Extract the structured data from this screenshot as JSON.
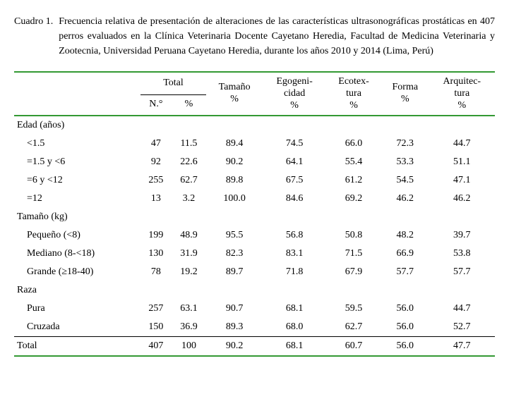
{
  "caption": {
    "label": "Cuadro 1.",
    "text": "Frecuencia relativa de presentación de alteraciones de las características ultrasonográficas prostáticas en 407 perros evaluados en la Clínica Veterinaria Docente Cayetano Heredia, Facultad de Medicina Veterinaria y Zootecnia, Universidad Peruana Cayetano Heredia, durante los años 2010 y 2014 (Lima, Perú)"
  },
  "headers": {
    "total": "Total",
    "n": "N.°",
    "pct": "%",
    "tamano": "Tamaño %",
    "egogenicidad": "Egogeni- cidad %",
    "ecotextura": "Ecotex- tura %",
    "forma": "Forma %",
    "arquitectura": "Arquitec- tura %"
  },
  "groups": {
    "edad": "Edad (años)",
    "tamano": "Tamaño (kg)",
    "raza": "Raza",
    "total": "Total"
  },
  "rows": {
    "edad1": {
      "label": "<1.5",
      "n": "47",
      "pct": "11.5",
      "tam": "89.4",
      "ego": "74.5",
      "eco": "66.0",
      "for": "72.3",
      "arq": "44.7"
    },
    "edad2": {
      "label": "=1.5 y <6",
      "n": "92",
      "pct": "22.6",
      "tam": "90.2",
      "ego": "64.1",
      "eco": "55.4",
      "for": "53.3",
      "arq": "51.1"
    },
    "edad3": {
      "label": "=6 y <12",
      "n": "255",
      "pct": "62.7",
      "tam": "89.8",
      "ego": "67.5",
      "eco": "61.2",
      "for": "54.5",
      "arq": "47.1"
    },
    "edad4": {
      "label": "=12",
      "n": "13",
      "pct": "3.2",
      "tam": "100.0",
      "ego": "84.6",
      "eco": "69.2",
      "for": "46.2",
      "arq": "46.2"
    },
    "tam1": {
      "label": "Pequeño (<8)",
      "n": "199",
      "pct": "48.9",
      "tam": "95.5",
      "ego": "56.8",
      "eco": "50.8",
      "for": "48.2",
      "arq": "39.7"
    },
    "tam2": {
      "label": "Mediano (8-<18)",
      "n": "130",
      "pct": "31.9",
      "tam": "82.3",
      "ego": "83.1",
      "eco": "71.5",
      "for": "66.9",
      "arq": "53.8"
    },
    "tam3": {
      "label": "Grande (≥18-40)",
      "n": "78",
      "pct": "19.2",
      "tam": "89.7",
      "ego": "71.8",
      "eco": "67.9",
      "for": "57.7",
      "arq": "57.7"
    },
    "raza1": {
      "label": "Pura",
      "n": "257",
      "pct": "63.1",
      "tam": "90.7",
      "ego": "68.1",
      "eco": "59.5",
      "for": "56.0",
      "arq": "44.7"
    },
    "raza2": {
      "label": "Cruzada",
      "n": "150",
      "pct": "36.9",
      "tam": "89.3",
      "ego": "68.0",
      "eco": "62.7",
      "for": "56.0",
      "arq": "52.7"
    },
    "total": {
      "n": "407",
      "pct": "100",
      "tam": "90.2",
      "ego": "68.1",
      "eco": "60.7",
      "for": "56.0",
      "arq": "47.7"
    }
  },
  "colors": {
    "green": "#339933"
  }
}
